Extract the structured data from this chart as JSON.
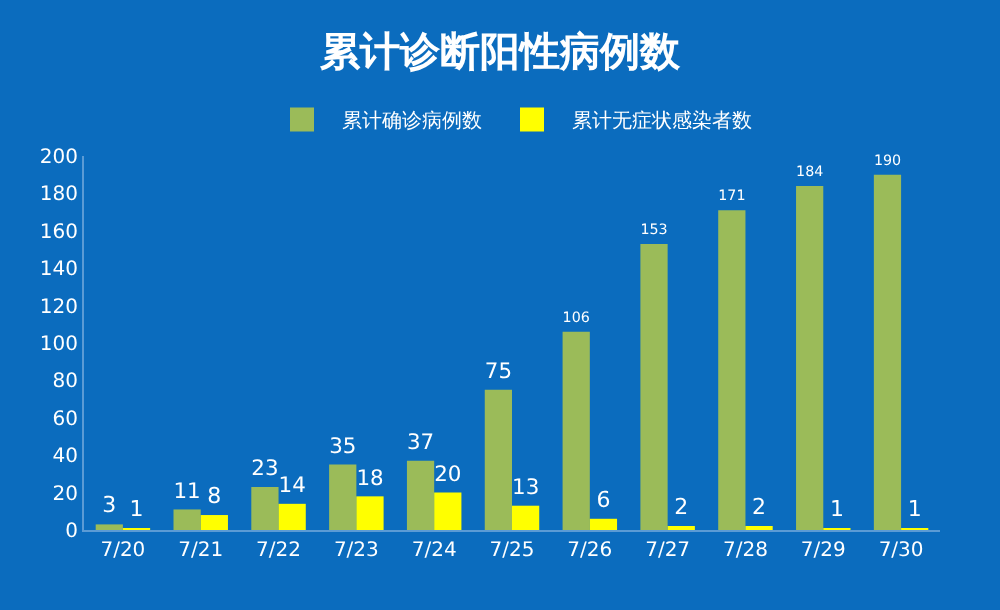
{
  "chart_data": {
    "type": "bar",
    "title": "累计诊断阳性病例数",
    "categories": [
      "7/20",
      "7/21",
      "7/22",
      "7/23",
      "7/24",
      "7/25",
      "7/26",
      "7/27",
      "7/28",
      "7/29",
      "7/30"
    ],
    "series": [
      {
        "name": "累计确诊病例数",
        "color": "#9bbb59",
        "values": [
          3,
          11,
          23,
          35,
          37,
          75,
          106,
          153,
          171,
          184,
          190
        ]
      },
      {
        "name": "累计无症状感染者数",
        "color": "#ffff00",
        "values": [
          1,
          8,
          14,
          18,
          20,
          13,
          6,
          2,
          2,
          1,
          1
        ]
      }
    ],
    "ylim": [
      0,
      200
    ],
    "yticks": [
      0,
      20,
      40,
      60,
      80,
      100,
      120,
      140,
      160,
      180,
      200
    ],
    "grid": false,
    "legend": "top",
    "data_labels": true
  }
}
